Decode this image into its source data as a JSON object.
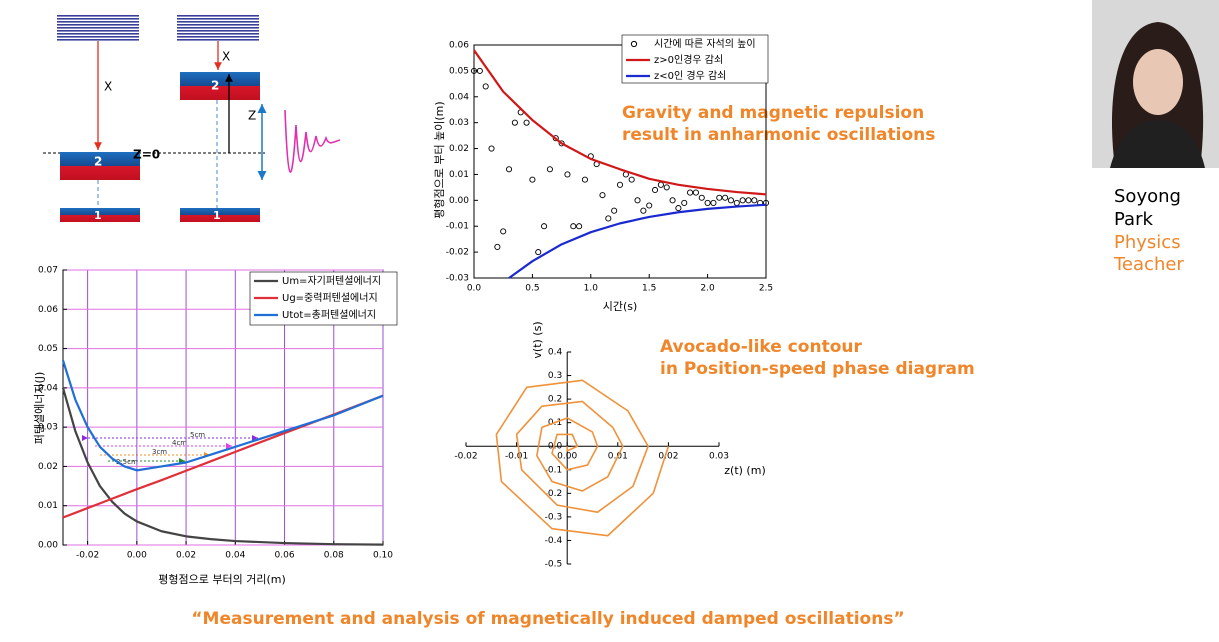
{
  "diagram": {
    "labels": [
      "X",
      "X",
      "Z=0",
      "Z"
    ],
    "magnets": [
      "2",
      "1",
      "2",
      "1"
    ]
  },
  "chart_data": [
    {
      "type": "line",
      "x": [
        -0.03,
        -0.025,
        -0.02,
        -0.015,
        -0.01,
        -0.005,
        0,
        0.01,
        0.02,
        0.03,
        0.04,
        0.06,
        0.08,
        0.1
      ],
      "series": [
        {
          "name": "Um=자기퍼텐셜에너지",
          "color": "#444444",
          "values": [
            0.04,
            0.029,
            0.021,
            0.015,
            0.011,
            0.008,
            0.006,
            0.0035,
            0.0022,
            0.0015,
            0.001,
            0.0005,
            0.0002,
            0.0001
          ]
        },
        {
          "name": "Ug=중력퍼텐셜에너지",
          "color": "#e0303a",
          "values": [
            0.007,
            0.0082,
            0.0094,
            0.0106,
            0.0118,
            0.013,
            0.0142,
            0.0165,
            0.0189,
            0.0213,
            0.0237,
            0.0285,
            0.0332,
            0.038
          ]
        },
        {
          "name": "Utot=총퍼텐셜에너지",
          "color": "#1f6fd6",
          "values": [
            0.047,
            0.037,
            0.03,
            0.025,
            0.022,
            0.02,
            0.019,
            0.02,
            0.021,
            0.023,
            0.025,
            0.029,
            0.033,
            0.038
          ]
        }
      ],
      "xlim": [
        -0.03,
        0.1
      ],
      "xticks": [
        -0.02,
        {
          "value": 0,
          "label": "0.00"
        },
        0.02,
        0.04,
        0.06,
        0.08,
        {
          "value": 0.1,
          "label": "0.10"
        }
      ],
      "ylim": [
        0,
        0.07
      ],
      "yticks": [
        {
          "value": 0,
          "label": "0.00"
        },
        0.01,
        0.02,
        0.03,
        0.04,
        0.05,
        0.06,
        0.07
      ],
      "xlabel": "평형점으로 부터의 거리(m)",
      "ylabel": "퍼텐셜에너지(J)",
      "grid": true,
      "legend": "upper right",
      "annotations": [
        "5cm",
        "4cm",
        "3cm",
        "2.5cm"
      ]
    },
    {
      "type": "line",
      "series": [
        {
          "name": "시간에 따른 자석의 높이",
          "color": "#000000",
          "marker": "circle",
          "x": [
            0,
            0.05,
            0.1,
            0.15,
            0.2,
            0.25,
            0.3,
            0.35,
            0.4,
            0.45,
            0.5,
            0.55,
            0.6,
            0.65,
            0.7,
            0.75,
            0.8,
            0.85,
            0.9,
            0.95,
            1,
            1.05,
            1.1,
            1.15,
            1.2,
            1.25,
            1.3,
            1.35,
            1.4,
            1.45,
            1.5,
            1.55,
            1.6,
            1.65,
            1.7,
            1.75,
            1.8,
            1.85,
            1.9,
            1.95,
            2,
            2.05,
            2.1,
            2.15,
            2.2,
            2.25,
            2.3,
            2.35,
            2.4,
            2.45,
            2.5
          ],
          "values": [
            0.05,
            0.05,
            0.044,
            0.02,
            -0.018,
            -0.012,
            0.012,
            0.03,
            0.034,
            0.03,
            0.008,
            -0.02,
            -0.01,
            0.012,
            0.024,
            0.022,
            0.01,
            -0.01,
            -0.01,
            0.008,
            0.017,
            0.014,
            0.002,
            -0.007,
            -0.004,
            0.006,
            0.01,
            0.008,
            0,
            -0.004,
            -0.002,
            0.004,
            0.006,
            0.005,
            0,
            -0.003,
            -0.001,
            0.003,
            0.003,
            0.001,
            -0.001,
            -0.001,
            0.001,
            0.001,
            0,
            -0.001,
            0,
            0,
            0,
            -0.001,
            -0.001
          ]
        },
        {
          "name": "z>0인경우 감쇠",
          "color": "#d01818",
          "x": [
            0,
            0.25,
            0.5,
            0.75,
            1,
            1.25,
            1.5,
            1.75,
            2,
            2.25,
            2.5
          ],
          "values": [
            0.058,
            0.042,
            0.031,
            0.022,
            0.016,
            0.012,
            0.0083,
            0.006,
            0.0044,
            0.0032,
            0.0023
          ]
        },
        {
          "name": "z<0인 경우 감쇠",
          "color": "#1a2ad0",
          "x": [
            0.3,
            0.5,
            0.75,
            1,
            1.25,
            1.5,
            1.75,
            2,
            2.25,
            2.5
          ],
          "values": [
            -0.03,
            -0.0235,
            -0.017,
            -0.0123,
            -0.0089,
            -0.0064,
            -0.0046,
            -0.0033,
            -0.0024,
            -0.0017
          ]
        }
      ],
      "xlim": [
        0,
        2.5
      ],
      "xticks": [
        {
          "value": 0,
          "label": "0.0"
        },
        0.5,
        {
          "value": 1,
          "label": "1.0"
        },
        1.5,
        {
          "value": 2,
          "label": "2.0"
        },
        2.5
      ],
      "ylim": [
        -0.03,
        0.06
      ],
      "yticks": [
        -0.03,
        -0.02,
        -0.01,
        {
          "value": 0,
          "label": "0.00"
        },
        0.01,
        0.02,
        0.03,
        0.04,
        0.05,
        0.06
      ],
      "xlabel": "시간(s)",
      "ylabel": "평형점으로 부터 높이(m)",
      "legend": "upper right"
    },
    {
      "type": "line",
      "series": [
        {
          "color": "#f0923a",
          "x": [
            0.02,
            0.017,
            0.008,
            -0.003,
            -0.013,
            -0.014,
            -0.008,
            0.003,
            0.012,
            0.016,
            0.013,
            0.006,
            -0.002,
            -0.009,
            -0.01,
            -0.005,
            0.003,
            0.009,
            0.011,
            0.008,
            0.003,
            -0.003,
            -0.006,
            -0.005,
            0,
            0.005,
            0.006,
            0.004,
            0,
            -0.003,
            -0.002,
            0.001,
            0.002,
            0,
            0
          ],
          "values": [
            0,
            -0.2,
            -0.38,
            -0.35,
            -0.15,
            0.05,
            0.25,
            0.28,
            0.15,
            0,
            -0.17,
            -0.28,
            -0.25,
            -0.1,
            0.05,
            0.17,
            0.19,
            0.08,
            0,
            -0.13,
            -0.19,
            -0.15,
            -0.04,
            0.08,
            0.12,
            0.06,
            0,
            -0.08,
            -0.1,
            -0.03,
            0.05,
            0.05,
            0,
            -0.02,
            0
          ]
        }
      ],
      "xlim": [
        -0.02,
        0.03
      ],
      "xticks": [
        -0.02,
        -0.01,
        {
          "value": 0,
          "label": "0.00"
        },
        0.01,
        0.02,
        0.03
      ],
      "ylim": [
        -0.5,
        0.4
      ],
      "yticks": [
        -0.5,
        -0.4,
        -0.3,
        -0.2,
        -0.1,
        {
          "value": 0,
          "label": "0.0"
        },
        0.1,
        0.2,
        0.3,
        0.4
      ],
      "xlabel": "z(t) (m)",
      "ylabel": "v(t) (s)",
      "axes_at_zero": true
    }
  ],
  "captions": {
    "oscillation": [
      "Gravity and magnetic repulsion",
      "result in anharmonic oscillations"
    ],
    "phase": [
      "Avocado-like contour",
      "in Position-speed phase diagram"
    ],
    "footer": "“Measurement and analysis of magnetically induced damped oscillations”"
  },
  "person": {
    "name": [
      "Soyong",
      "Park"
    ],
    "role": [
      "Physics",
      "Teacher"
    ]
  }
}
